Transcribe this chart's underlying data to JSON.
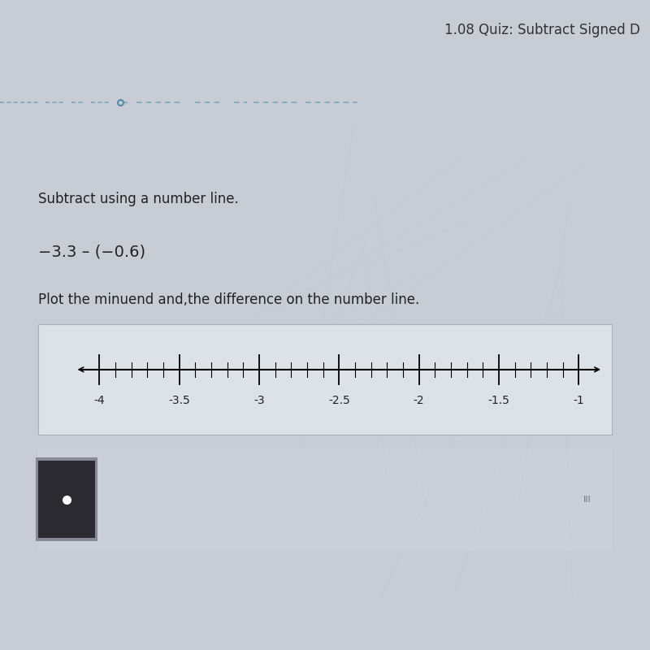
{
  "title_text": "1.08 Quiz: Subtract Signed D",
  "instruction": "Subtract using a number line.",
  "expression": "−3.3 – (−0.6)",
  "plot_instruction": "Plot the minuend and,the difference on the number line.",
  "tick_major": [
    -4,
    -3.5,
    -3,
    -2.5,
    -2,
    -1.5,
    -1
  ],
  "tick_labels": [
    "-4",
    "-3.5",
    "-3",
    "-2.5",
    "-2",
    "-1.5",
    "-1"
  ],
  "data_min": -4.15,
  "data_max": -0.85,
  "bg_main": "#c8ccd4",
  "bg_white_panel": "#e8ecf0",
  "bg_top_bar": "#c0c4cc",
  "bg_nl_box": "#dde2e8",
  "bg_dot_box": "#888ea0",
  "nl_box_color": "#b0b8c4",
  "dot_box_dark": "#2a2a30",
  "dot_color": "#ffffff",
  "font_color": "#222222",
  "font_color_title": "#333333",
  "font_size_title": 12,
  "font_size_instruction": 12,
  "font_size_expression": 14,
  "font_size_plot_instruction": 12,
  "font_size_tick": 10
}
